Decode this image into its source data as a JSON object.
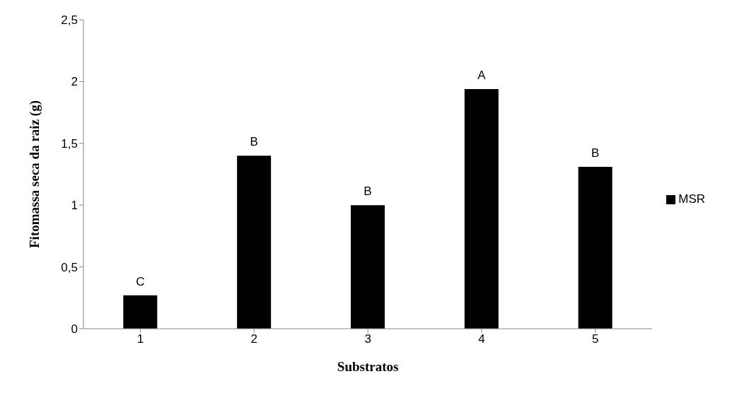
{
  "chart_data": {
    "type": "bar",
    "xlabel": "Substratos",
    "ylabel": "Fitomassa seca da raiz (g)",
    "categories": [
      "1",
      "2",
      "3",
      "4",
      "5"
    ],
    "series": [
      {
        "name": "MSR",
        "color": "#000000",
        "values": [
          0.27,
          1.4,
          1.0,
          1.94,
          1.31
        ]
      }
    ],
    "ylim": [
      0,
      2.5
    ],
    "yticks": [
      {
        "value": 0,
        "label": "0"
      },
      {
        "value": 0.5,
        "label": "0,5"
      },
      {
        "value": 1,
        "label": "1"
      },
      {
        "value": 1.5,
        "label": "1,5"
      },
      {
        "value": 2,
        "label": "2"
      },
      {
        "value": 2.5,
        "label": "2,5"
      }
    ],
    "grid": false,
    "legend": "right",
    "annotations": [
      {
        "text": "C",
        "x": "1",
        "y": 0.27
      },
      {
        "text": "B",
        "x": "2",
        "y": 1.4
      },
      {
        "text": "B",
        "x": "3",
        "y": 1.0
      },
      {
        "text": "A",
        "x": "4",
        "y": 1.94
      },
      {
        "text": "B",
        "x": "5",
        "y": 1.31
      }
    ]
  }
}
